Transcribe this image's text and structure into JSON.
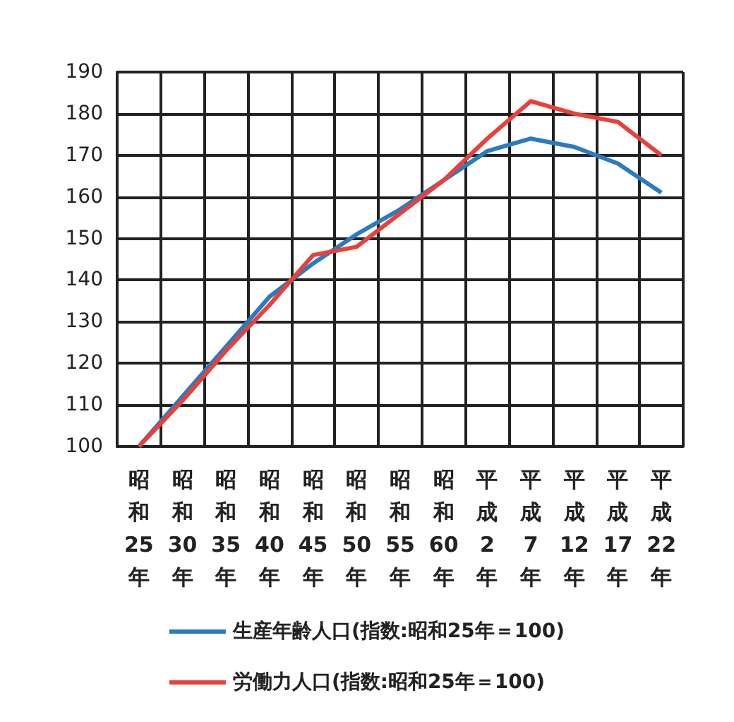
{
  "chart_data": {
    "type": "line",
    "categories": [
      "昭和25年",
      "昭和30年",
      "昭和35年",
      "昭和40年",
      "昭和45年",
      "昭和50年",
      "昭和55年",
      "昭和60年",
      "平成2年",
      "平成7年",
      "平成12年",
      "平成17年",
      "平成22年"
    ],
    "series": [
      {
        "name": "生産年齢人口(指数:昭和25年＝100)",
        "color": "#2a7bc0",
        "values": [
          100,
          112,
          124,
          136,
          144,
          151,
          157,
          164,
          171,
          174,
          172,
          168,
          161
        ]
      },
      {
        "name": "労働力人口(指数:昭和25年＝100)",
        "color": "#e8403a",
        "values": [
          100,
          111,
          123,
          134,
          146,
          148,
          156,
          164,
          174,
          183,
          180,
          178,
          170
        ]
      }
    ],
    "ylim": [
      100,
      190
    ],
    "yticks": [
      100,
      110,
      120,
      130,
      140,
      150,
      160,
      170,
      180,
      190
    ],
    "grid": true,
    "legend": "bottom",
    "marker": "none",
    "line_style": "solid"
  }
}
